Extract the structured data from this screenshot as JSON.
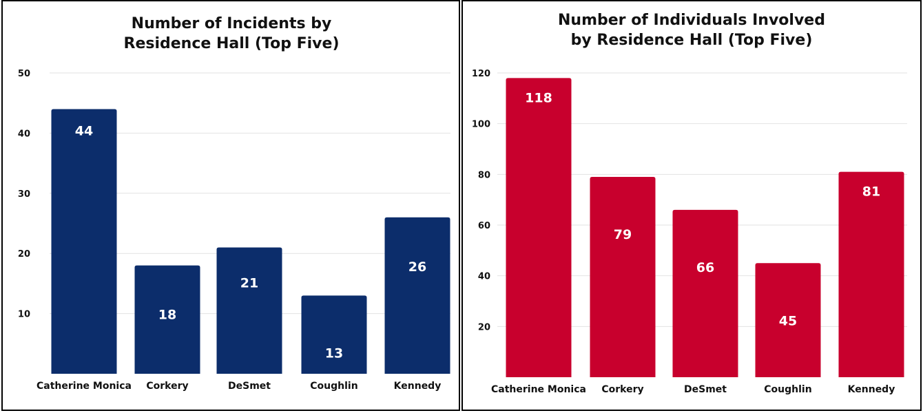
{
  "chart_data": [
    {
      "type": "bar",
      "title_lines": [
        "Number of Incidents by",
        "Residence Hall (Top Five)"
      ],
      "categories": [
        "Catherine Monica",
        "Corkery",
        "DeSmet",
        "Coughlin",
        "Kennedy"
      ],
      "values": [
        44,
        18,
        21,
        13,
        26
      ],
      "ylim": [
        0,
        50
      ],
      "yticks": [
        10,
        20,
        30,
        40,
        50
      ],
      "grid": true,
      "color": "#0c2d6b"
    },
    {
      "type": "bar",
      "title_lines": [
        "Number of Individuals Involved",
        "by Residence Hall (Top Five)"
      ],
      "categories": [
        "Catherine Monica",
        "Corkery",
        "DeSmet",
        "Coughlin",
        "Kennedy"
      ],
      "values": [
        118,
        79,
        66,
        45,
        81
      ],
      "ylim": [
        0,
        120
      ],
      "yticks": [
        20,
        40,
        60,
        80,
        100,
        120
      ],
      "grid": true,
      "color": "#c8002d"
    }
  ]
}
